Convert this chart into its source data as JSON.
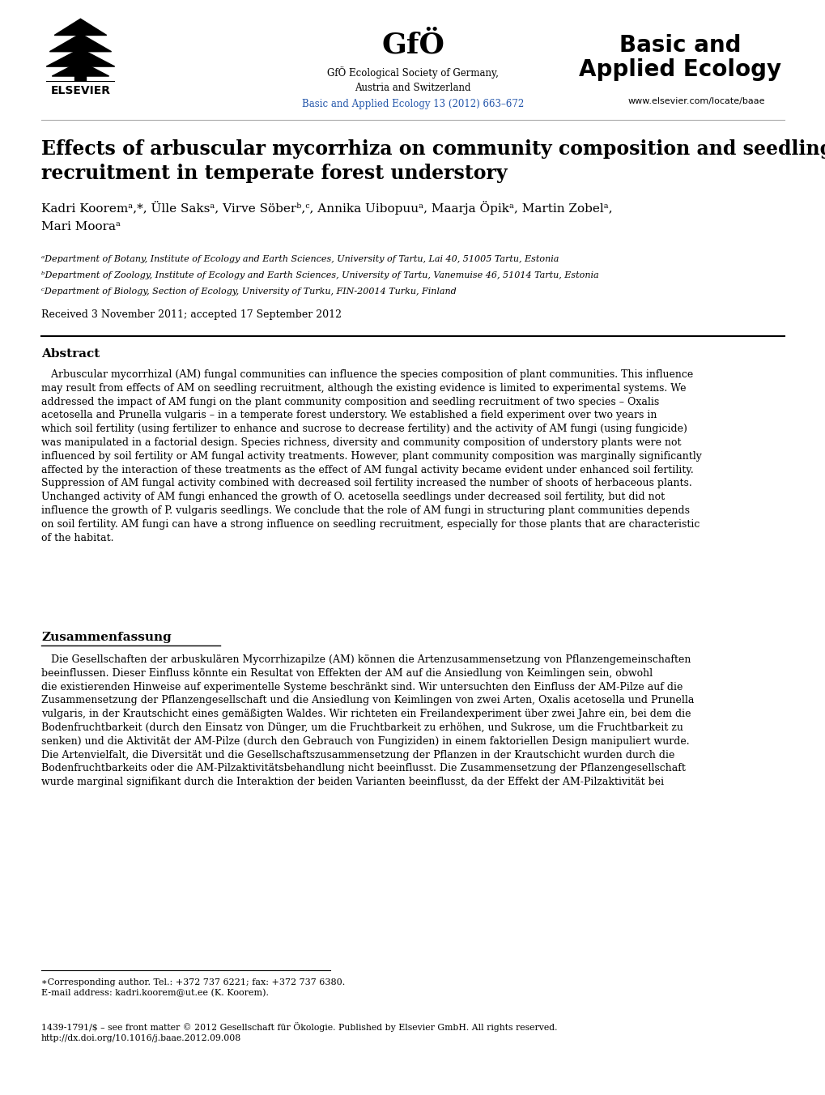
{
  "background_color": "#ffffff",
  "header": {
    "elsevier_text": "ELSEVIER",
    "gfo_title": "GfÖ",
    "gfo_subtitle": "GfÖ Ecological Society of Germany,\nAustria and Switzerland",
    "journal_link": "Basic and Applied Ecology 13 (2012) 663–672",
    "journal_name_line1": "Basic and",
    "journal_name_line2": "Applied Ecology",
    "website": "www.elsevier.com/locate/baae"
  },
  "article_title": "Effects of arbuscular mycorrhiza on community composition and seedling\nrecruitment in temperate forest understory",
  "authors_line1": "Kadri Kooremᵃ,*, Ülle Saksᵃ, Virve Söberᵇ,ᶜ, Annika Uibopuuᵃ, Maarja Öpikᵃ, Martin Zobelᵃ,",
  "authors_line2": "Mari Mooraᵃ",
  "affiliations": [
    "ᵃDepartment of Botany, Institute of Ecology and Earth Sciences, University of Tartu, Lai 40, 51005 Tartu, Estonia",
    "ᵇDepartment of Zoology, Institute of Ecology and Earth Sciences, University of Tartu, Vanemuise 46, 51014 Tartu, Estonia",
    "ᶜDepartment of Biology, Section of Ecology, University of Turku, FIN-20014 Turku, Finland"
  ],
  "received_text": "Received 3 November 2011; accepted 17 September 2012",
  "abstract_title": "Abstract",
  "abstract_text": "   Arbuscular mycorrhizal (AM) fungal communities can influence the species composition of plant communities. This influence\nmay result from effects of AM on seedling recruitment, although the existing evidence is limited to experimental systems. We\naddressed the impact of AM fungi on the plant community composition and seedling recruitment of two species – Oxalis\nacetosella and Prunella vulgaris – in a temperate forest understory. We established a field experiment over two years in\nwhich soil fertility (using fertilizer to enhance and sucrose to decrease fertility) and the activity of AM fungi (using fungicide)\nwas manipulated in a factorial design. Species richness, diversity and community composition of understory plants were not\ninfluenced by soil fertility or AM fungal activity treatments. However, plant community composition was marginally significantly\naffected by the interaction of these treatments as the effect of AM fungal activity became evident under enhanced soil fertility.\nSuppression of AM fungal activity combined with decreased soil fertility increased the number of shoots of herbaceous plants.\nUnchanged activity of AM fungi enhanced the growth of O. acetosella seedlings under decreased soil fertility, but did not\ninfluence the growth of P. vulgaris seedlings. We conclude that the role of AM fungi in structuring plant communities depends\non soil fertility. AM fungi can have a strong influence on seedling recruitment, especially for those plants that are characteristic\nof the habitat.",
  "zusammenfassung_title": "Zusammenfassung",
  "zusammenfassung_text": "   Die Gesellschaften der arbuskulären Mycorrhizapilze (AM) können die Artenzusammensetzung von Pflanzengemeinschaften\nbeeinflussen. Dieser Einfluss könnte ein Resultat von Effekten der AM auf die Ansiedlung von Keimlingen sein, obwohl\ndie existierenden Hinweise auf experimentelle Systeme beschränkt sind. Wir untersuchten den Einfluss der AM-Pilze auf die\nZusammensetzung der Pflanzengesellschaft und die Ansiedlung von Keimlingen von zwei Arten, Oxalis acetosella und Prunella\nvulgaris, in der Krautschicht eines gemäßigten Waldes. Wir richteten ein Freilandexperiment über zwei Jahre ein, bei dem die\nBodenfruchtbarkeit (durch den Einsatz von Dünger, um die Fruchtbarkeit zu erhöhen, und Sukrose, um die Fruchtbarkeit zu\nsenken) und die Aktivität der AM-Pilze (durch den Gebrauch von Fungiziden) in einem faktoriellen Design manipuliert wurde.\nDie Artenvielfalt, die Diversität und die Gesellschaftszusammensetzung der Pflanzen in der Krautschicht wurden durch die\nBodenfruchtbarkeits oder die AM-Pilzaktivitätsbehandlung nicht beeinflusst. Die Zusammensetzung der Pflanzengesellschaft\nwurde marginal signifikant durch die Interaktion der beiden Varianten beeinflusst, da der Effekt der AM-Pilzaktivität bei",
  "footnote_corresponding": "∗Corresponding author. Tel.: +372 737 6221; fax: +372 737 6380.\nE-mail address: kadri.koorem@ut.ee (K. Koorem).",
  "footnote_issn": "1439-1791/$ – see front matter © 2012 Gesellschaft für Ökologie. Published by Elsevier GmbH. All rights reserved.\nhttp://dx.doi.org/10.1016/j.baae.2012.09.008",
  "blue_color": "#2255aa",
  "link_color": "#3366cc"
}
